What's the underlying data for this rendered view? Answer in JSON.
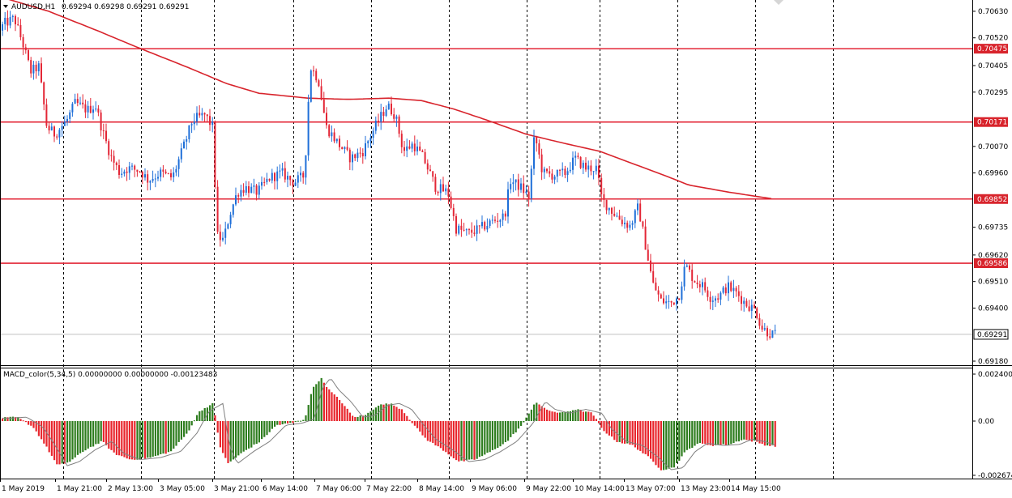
{
  "header": {
    "symbol_label": "AUDUSD,H1",
    "ohlc_label": "0.69294 0.69298 0.69291 0.69291",
    "dropdown_icon": "triangle-down-icon"
  },
  "macd": {
    "label": "MACD_color(5,34,5) 0.00000000 0.00000000 -0.00123483",
    "positive_color": "#2e7d1f",
    "negative_color": "#e8262d",
    "signal_color": "#808080"
  },
  "colors": {
    "bull": "#1f6fd8",
    "bear": "#e32636",
    "ma": "#d8242c",
    "levels": "#e32636"
  },
  "chart_data": {
    "type": "candlestick",
    "symbol": "AUDUSD",
    "timeframe": "H1",
    "price_axis": {
      "ticks": [
        "0.70630",
        "0.70520",
        "0.70405",
        "0.70295",
        "0.70070",
        "0.69960",
        "0.69735",
        "0.69620",
        "0.69510",
        "0.69400",
        "0.69180"
      ],
      "range": [
        0.6916,
        0.7066
      ]
    },
    "horizontal_levels": [
      {
        "price": 0.70475,
        "label": "0.70475"
      },
      {
        "price": 0.70171,
        "label": "0.70171"
      },
      {
        "price": 0.69852,
        "label": "0.69852"
      },
      {
        "price": 0.69586,
        "label": "0.69586"
      }
    ],
    "current_price": {
      "price": 0.69291,
      "label": "0.69291"
    },
    "time_axis": {
      "labels": [
        "1 May 2019",
        "1 May 21:00",
        "2 May 13:00",
        "3 May 05:00",
        "3 May 21:00",
        "6 May 14:00",
        "7 May 06:00",
        "7 May 22:00",
        "8 May 14:00",
        "9 May 06:00",
        "9 May 22:00",
        "10 May 14:00",
        "13 May 07:00",
        "13 May 23:00",
        "14 May 15:00"
      ]
    },
    "price_path": [
      [
        0,
        0.7055
      ],
      [
        8,
        0.7058
      ],
      [
        20,
        0.706
      ],
      [
        30,
        0.705
      ],
      [
        40,
        0.7038
      ],
      [
        50,
        0.704
      ],
      [
        60,
        0.7015
      ],
      [
        70,
        0.7012
      ],
      [
        85,
        0.7018
      ],
      [
        95,
        0.7025
      ],
      [
        110,
        0.7022
      ],
      [
        120,
        0.7024
      ],
      [
        130,
        0.7012
      ],
      [
        140,
        0.7002
      ],
      [
        150,
        0.6996
      ],
      [
        160,
        0.6998
      ],
      [
        175,
        0.6997
      ],
      [
        185,
        0.6993
      ],
      [
        200,
        0.6996
      ],
      [
        215,
        0.6994
      ],
      [
        230,
        0.7008
      ],
      [
        240,
        0.7018
      ],
      [
        255,
        0.702
      ],
      [
        265,
        0.7015
      ],
      [
        270,
        0.697
      ],
      [
        278,
        0.6968
      ],
      [
        285,
        0.6978
      ],
      [
        295,
        0.6988
      ],
      [
        305,
        0.699
      ],
      [
        320,
        0.6988
      ],
      [
        335,
        0.6994
      ],
      [
        350,
        0.6996
      ],
      [
        365,
        0.6992
      ],
      [
        378,
        0.6995
      ],
      [
        385,
        0.704
      ],
      [
        395,
        0.7035
      ],
      [
        405,
        0.7015
      ],
      [
        420,
        0.7008
      ],
      [
        435,
        0.7002
      ],
      [
        450,
        0.7005
      ],
      [
        465,
        0.7015
      ],
      [
        480,
        0.7024
      ],
      [
        490,
        0.702
      ],
      [
        500,
        0.7005
      ],
      [
        512,
        0.7008
      ],
      [
        525,
        0.7002
      ],
      [
        540,
        0.699
      ],
      [
        555,
        0.6988
      ],
      [
        565,
        0.6973
      ],
      [
        580,
        0.6971
      ],
      [
        595,
        0.6973
      ],
      [
        610,
        0.6976
      ],
      [
        625,
        0.6978
      ],
      [
        632,
        0.6993
      ],
      [
        645,
        0.699
      ],
      [
        655,
        0.6986
      ],
      [
        662,
        0.7012
      ],
      [
        672,
        0.6996
      ],
      [
        685,
        0.6995
      ],
      [
        700,
        0.6996
      ],
      [
        712,
        0.7002
      ],
      [
        725,
        0.6998
      ],
      [
        738,
        0.6998
      ],
      [
        745,
        0.6985
      ],
      [
        758,
        0.698
      ],
      [
        770,
        0.6976
      ],
      [
        780,
        0.6974
      ],
      [
        790,
        0.6982
      ],
      [
        800,
        0.6964
      ],
      [
        808,
        0.695
      ],
      [
        818,
        0.6943
      ],
      [
        830,
        0.6942
      ],
      [
        840,
        0.6945
      ],
      [
        848,
        0.6958
      ],
      [
        858,
        0.6952
      ],
      [
        870,
        0.6949
      ],
      [
        880,
        0.6944
      ],
      [
        890,
        0.6945
      ],
      [
        900,
        0.6949
      ],
      [
        912,
        0.6946
      ],
      [
        922,
        0.6942
      ],
      [
        935,
        0.6939
      ],
      [
        942,
        0.6932
      ],
      [
        950,
        0.693
      ],
      [
        956,
        0.69291
      ]
    ],
    "moving_average_path": [
      [
        0,
        0.7069
      ],
      [
        60,
        0.7063
      ],
      [
        120,
        0.7055
      ],
      [
        170,
        0.7048
      ],
      [
        230,
        0.704
      ],
      [
        280,
        0.7033
      ],
      [
        320,
        0.7029
      ],
      [
        380,
        0.7027
      ],
      [
        430,
        0.70265
      ],
      [
        480,
        0.7027
      ],
      [
        520,
        0.7026
      ],
      [
        560,
        0.70225
      ],
      [
        600,
        0.7018
      ],
      [
        650,
        0.7012
      ],
      [
        700,
        0.7008
      ],
      [
        740,
        0.7005
      ],
      [
        780,
        0.7
      ],
      [
        820,
        0.6995
      ],
      [
        850,
        0.6991
      ],
      [
        900,
        0.6988
      ],
      [
        955,
        0.69852
      ]
    ],
    "macd_axis": {
      "ticks": [
        "0.0024005",
        "0.00",
        "-0.0026747"
      ],
      "range": [
        -0.0026747,
        0.0024005
      ]
    },
    "macd_path": [
      [
        0,
        0.00015
      ],
      [
        20,
        0.0002
      ],
      [
        40,
        -0.0003
      ],
      [
        55,
        -0.0012
      ],
      [
        70,
        -0.0022
      ],
      [
        85,
        -0.002
      ],
      [
        105,
        -0.0014
      ],
      [
        125,
        -0.001
      ],
      [
        140,
        -0.0016
      ],
      [
        160,
        -0.0019
      ],
      [
        185,
        -0.0018
      ],
      [
        210,
        -0.0015
      ],
      [
        230,
        -0.0006
      ],
      [
        245,
        0.0005
      ],
      [
        262,
        0.0009
      ],
      [
        270,
        -0.0012
      ],
      [
        280,
        -0.0021
      ],
      [
        300,
        -0.0015
      ],
      [
        320,
        -0.001
      ],
      [
        340,
        -0.0002
      ],
      [
        360,
        -0.0001
      ],
      [
        375,
        0.0001
      ],
      [
        385,
        0.0017
      ],
      [
        395,
        0.0022
      ],
      [
        405,
        0.0016
      ],
      [
        420,
        0.001
      ],
      [
        435,
        0.0002
      ],
      [
        450,
        0.0003
      ],
      [
        465,
        0.0008
      ],
      [
        480,
        0.0009
      ],
      [
        495,
        0.0006
      ],
      [
        510,
        -0.0002
      ],
      [
        525,
        -0.0009
      ],
      [
        545,
        -0.0014
      ],
      [
        565,
        -0.002
      ],
      [
        585,
        -0.0019
      ],
      [
        605,
        -0.0015
      ],
      [
        625,
        -0.001
      ],
      [
        645,
        -0.0001
      ],
      [
        660,
        0.001
      ],
      [
        672,
        0.0006
      ],
      [
        690,
        0.0004
      ],
      [
        710,
        0.0006
      ],
      [
        730,
        0.0004
      ],
      [
        742,
        -0.0004
      ],
      [
        760,
        -0.001
      ],
      [
        780,
        -0.0012
      ],
      [
        800,
        -0.0018
      ],
      [
        815,
        -0.0024
      ],
      [
        830,
        -0.0023
      ],
      [
        845,
        -0.0015
      ],
      [
        860,
        -0.0011
      ],
      [
        880,
        -0.0012
      ],
      [
        900,
        -0.00115
      ],
      [
        915,
        -0.0009
      ],
      [
        930,
        -0.001
      ],
      [
        945,
        -0.0012
      ],
      [
        956,
        -0.00123
      ]
    ]
  }
}
